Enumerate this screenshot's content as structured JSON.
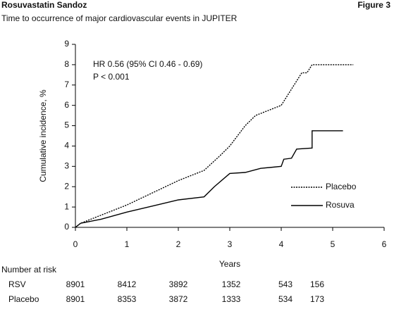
{
  "chart_data": {
    "type": "line",
    "title": "Rosuvastatin Sandoz",
    "figure_label": "Figure 3",
    "subtitle": "Time to occurrence of major cardiovascular events in JUPITER",
    "x_label": "Years",
    "y_label": "Cumulative incidence, %",
    "xlim": [
      0,
      6
    ],
    "xticks": [
      0,
      1,
      2,
      3,
      4,
      5,
      6
    ],
    "ylim": [
      0,
      9
    ],
    "yticks": [
      0,
      1,
      2,
      3,
      4,
      5,
      6,
      7,
      8,
      9
    ],
    "annotations": [
      "HR 0.56 (95% CI 0.46 - 0.69)",
      "P < 0.001"
    ],
    "legend": "lower right",
    "series": [
      {
        "name": "Placebo",
        "color": "#000000",
        "style": "dotted",
        "x": [
          0,
          0.1,
          0.5,
          1,
          1.5,
          2,
          2.5,
          2.8,
          3,
          3.3,
          3.5,
          3.8,
          4,
          4.2,
          4.3,
          4.4,
          4.5,
          4.6,
          5.4
        ],
        "values": [
          0,
          0.2,
          0.6,
          1.1,
          1.7,
          2.3,
          2.8,
          3.5,
          4.0,
          5.0,
          5.5,
          5.8,
          6.0,
          6.8,
          7.2,
          7.6,
          7.6,
          8.0,
          8.0
        ]
      },
      {
        "name": "Rosuva",
        "color": "#000000",
        "style": "solid",
        "x": [
          0,
          0.1,
          0.5,
          1,
          1.5,
          2,
          2.5,
          2.7,
          3,
          3.3,
          3.6,
          4,
          4.05,
          4.2,
          4.3,
          4.6,
          4.6,
          5.2
        ],
        "values": [
          0,
          0.2,
          0.4,
          0.75,
          1.05,
          1.35,
          1.5,
          2.0,
          2.65,
          2.7,
          2.9,
          3.0,
          3.35,
          3.4,
          3.85,
          3.9,
          4.75,
          4.75
        ]
      }
    ],
    "risk_table": {
      "title": "Number at risk",
      "rows": [
        {
          "label": "RSV",
          "values": [
            "8901",
            "8412",
            "3892",
            "1352",
            "543",
            "156"
          ]
        },
        {
          "label": "Placebo",
          "values": [
            "8901",
            "8353",
            "3872",
            "1333",
            "534",
            "173"
          ]
        }
      ]
    }
  }
}
